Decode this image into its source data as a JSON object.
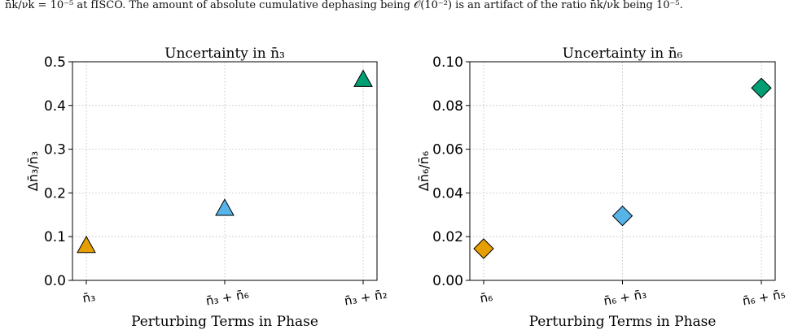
{
  "caption": "n̄k/νk = 10⁻⁵ at fISCO. The amount of absolute cumulative dephasing being 𝒪(10⁻²) is an artifact of the ratio n̄k/νk being 10⁻⁵.",
  "colors": {
    "orange": "#E69F00",
    "blue": "#56B4E9",
    "green": "#009E73"
  },
  "chart_data": [
    {
      "type": "scatter",
      "marker": "triangle",
      "title": "Uncertainty in n̄₃",
      "xlabel": "Perturbing Terms in Phase",
      "ylabel": "Δn̄₃/n̄₃",
      "categories": [
        "n̄₃",
        "n̄₃ + n̄₆",
        "n̄₃ + n̄₂"
      ],
      "values": [
        0.08,
        0.165,
        0.46
      ],
      "point_colors": [
        "#E69F00",
        "#56B4E9",
        "#009E73"
      ],
      "ylim": [
        0.0,
        0.5
      ],
      "yticks": [
        "0.0",
        "0.1",
        "0.2",
        "0.3",
        "0.4",
        "0.5"
      ],
      "ytick_values": [
        0.0,
        0.1,
        0.2,
        0.3,
        0.4,
        0.5
      ],
      "grid": true
    },
    {
      "type": "scatter",
      "marker": "diamond",
      "title": "Uncertainty in n̄₆",
      "xlabel": "Perturbing Terms in Phase",
      "ylabel": "Δn̄₆/n̄₆",
      "categories": [
        "n̄₆",
        "n̄₆ + n̄₃",
        "n̄₆ + n̄₅"
      ],
      "values": [
        0.0145,
        0.0295,
        0.088
      ],
      "point_colors": [
        "#E69F00",
        "#56B4E9",
        "#009E73"
      ],
      "ylim": [
        0.0,
        0.1
      ],
      "yticks": [
        "0.00",
        "0.02",
        "0.04",
        "0.06",
        "0.08",
        "0.10"
      ],
      "ytick_values": [
        0.0,
        0.02,
        0.04,
        0.06,
        0.08,
        0.1
      ],
      "grid": true
    }
  ]
}
